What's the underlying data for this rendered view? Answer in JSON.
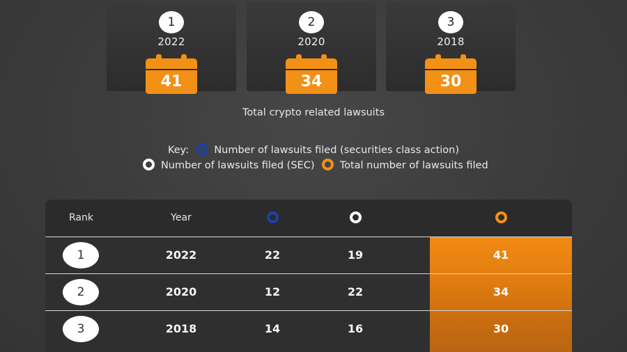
{
  "cards": [
    {
      "rank": "1",
      "year": "2022",
      "total": "41"
    },
    {
      "rank": "2",
      "year": "2020",
      "total": "34"
    },
    {
      "rank": "3",
      "year": "2018",
      "total": "30"
    }
  ],
  "caption": "Total crypto related lawsuits",
  "key": {
    "label": "Key:",
    "sca": "Number of lawsuits filed (securities class action)",
    "sec": "Number of lawsuits filed (SEC)",
    "total": "Total number of lawsuits filed"
  },
  "colors": {
    "sca": "#1f3fa8",
    "sec": "#ffffff",
    "total": "#f39016"
  },
  "table": {
    "headers": {
      "rank": "Rank",
      "year": "Year"
    },
    "header_icons": {
      "sca": "blue-ring-icon",
      "sec": "white-ring-icon",
      "total": "orange-ring-icon"
    }
  },
  "chart_data": {
    "type": "table",
    "title": "Total crypto related lawsuits",
    "columns": [
      "Rank",
      "Year",
      "Number of lawsuits filed (securities class action)",
      "Number of lawsuits filed (SEC)",
      "Total number of lawsuits filed"
    ],
    "rows": [
      {
        "rank": "1",
        "year": "2022",
        "sca": "22",
        "sec": "19",
        "total": "41"
      },
      {
        "rank": "2",
        "year": "2020",
        "sca": "12",
        "sec": "22",
        "total": "34"
      },
      {
        "rank": "3",
        "year": "2018",
        "sca": "14",
        "sec": "16",
        "total": "30"
      }
    ]
  }
}
